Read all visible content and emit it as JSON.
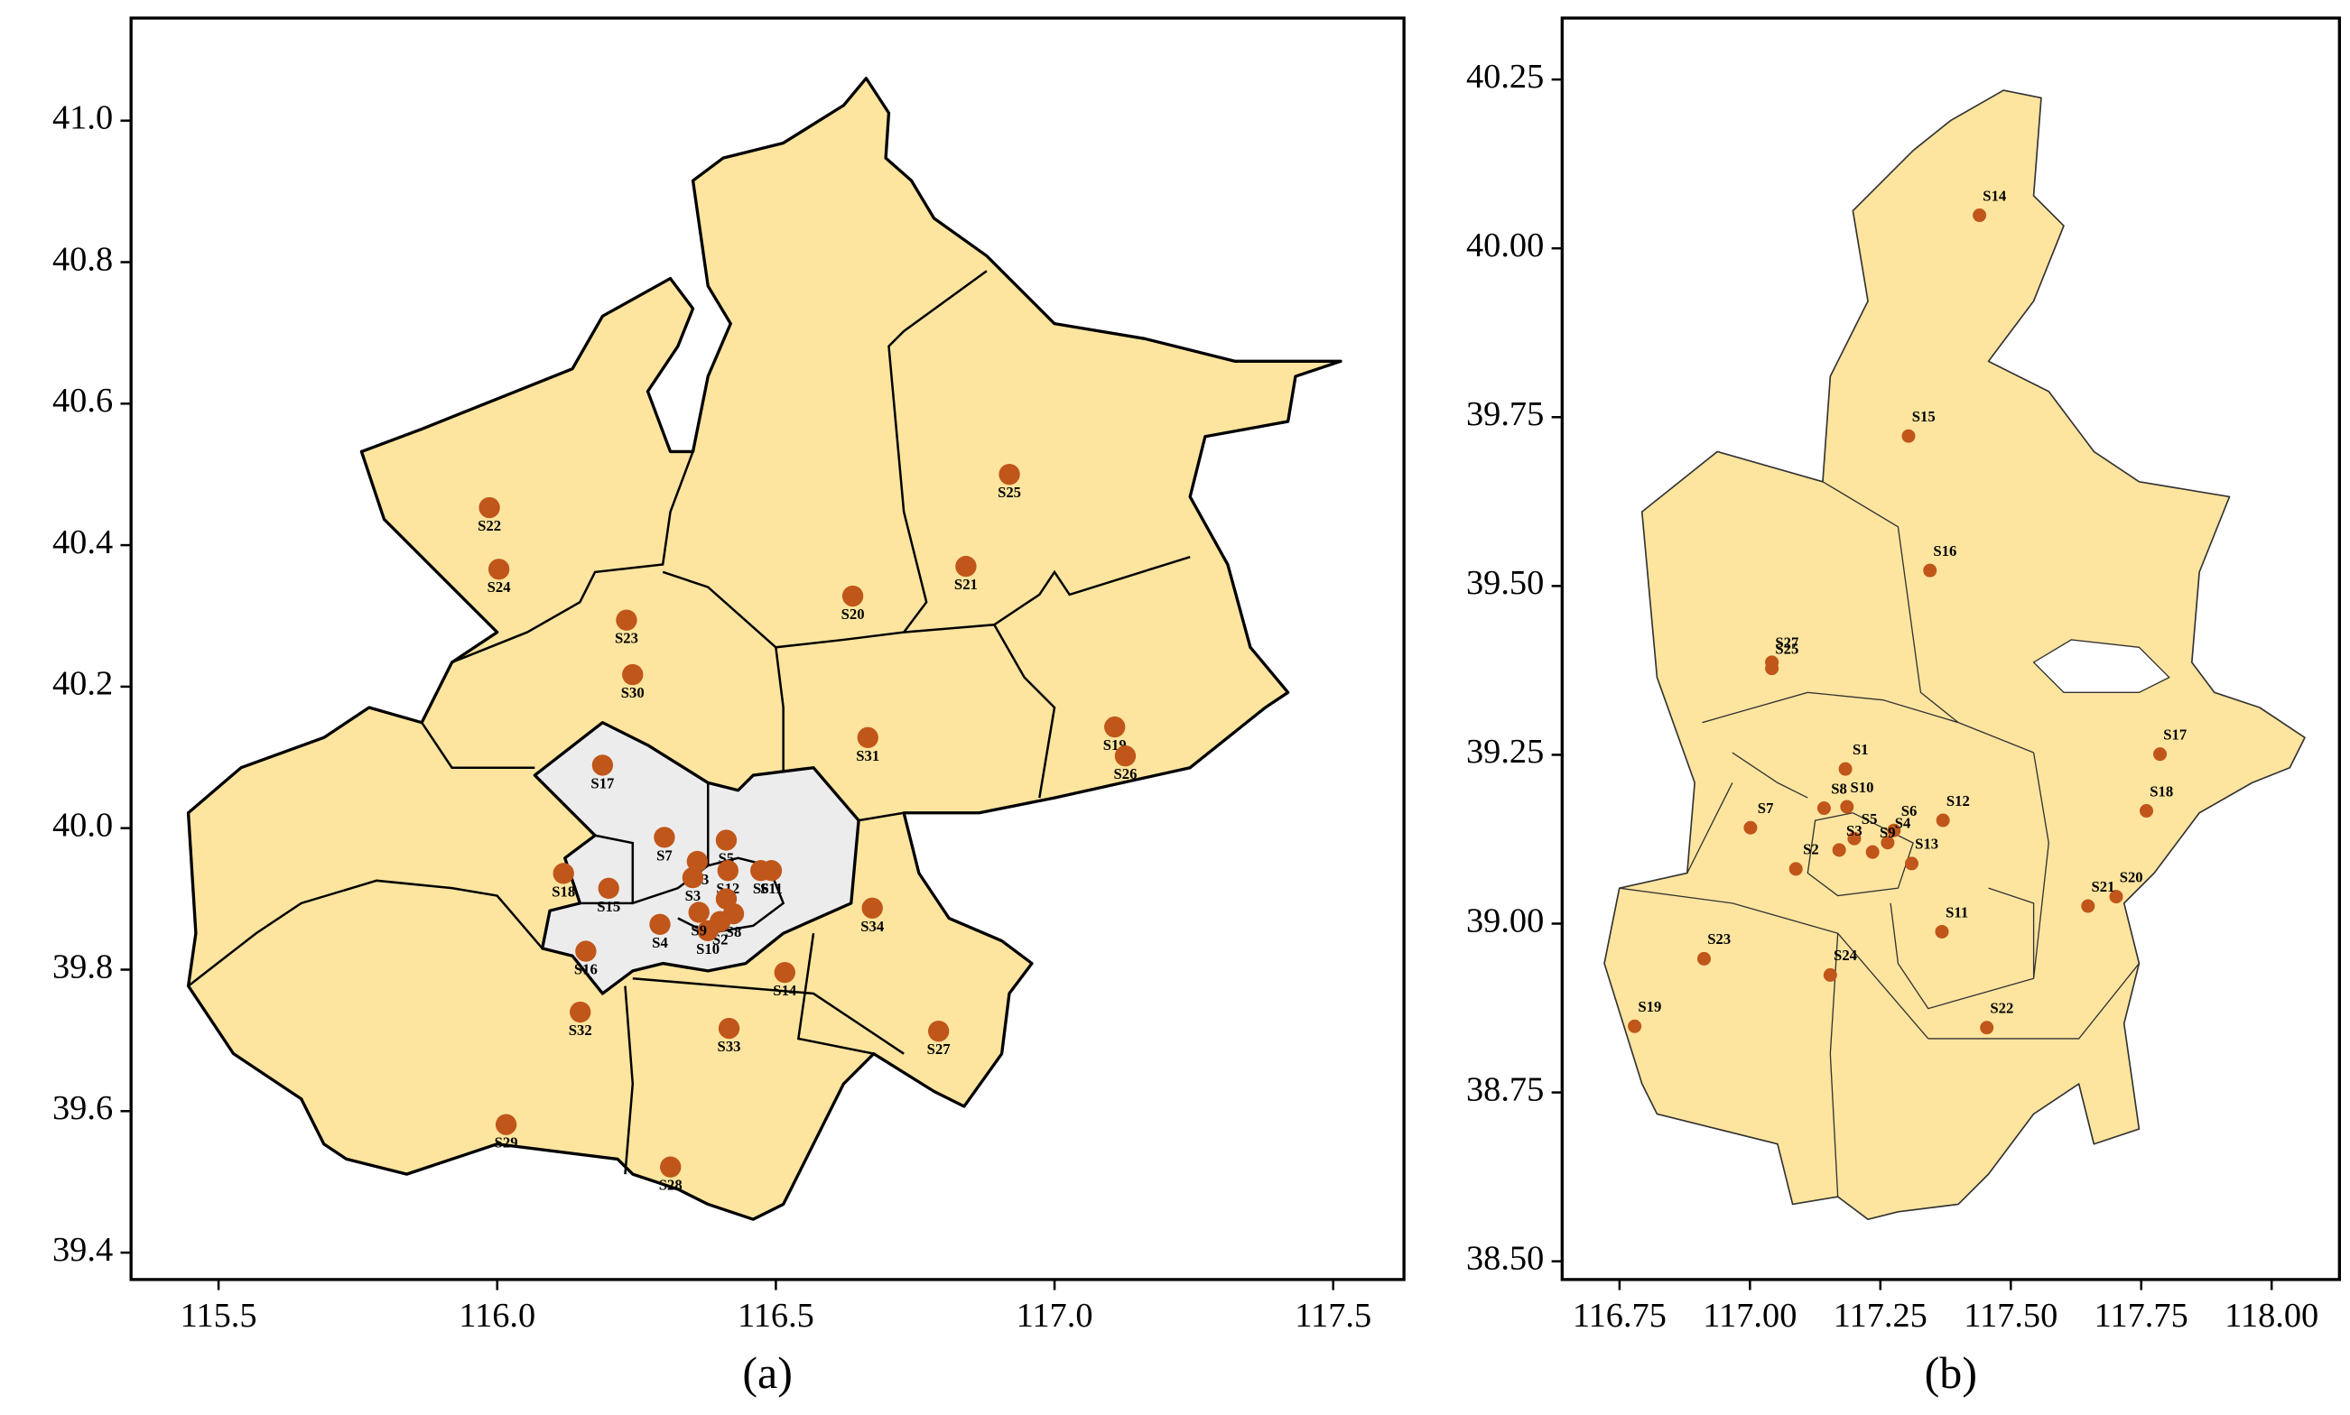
{
  "chart_data": [
    {
      "type": "scatter",
      "caption": "(a)",
      "color": "#c0561a",
      "xlim": [
        115.343,
        117.627
      ],
      "ylim": [
        39.362,
        41.145
      ],
      "xticks": [
        115.5,
        {
          "value": 116.0,
          "label": "116.0"
        },
        116.5,
        {
          "value": 117.0,
          "label": "117.0"
        },
        117.5
      ],
      "yticks": [
        {
          "value": 39.4,
          "label": "39.4"
        },
        39.6,
        39.8,
        {
          "value": 40.0,
          "label": "40.0"
        },
        40.2,
        40.4,
        40.6,
        40.8,
        {
          "value": 41.0,
          "label": "41.0"
        }
      ],
      "names": [
        "S22",
        "S24",
        "S23",
        "S30",
        "S20",
        "S21",
        "S25",
        "S19",
        "S26",
        "S31",
        "S17",
        "S7",
        "S13",
        "S5",
        "S12",
        "S6",
        "S11",
        "S3",
        "S1",
        "S8",
        "S2",
        "S10",
        "S4",
        "S9",
        "S18",
        "S15",
        "S16",
        "S34",
        "S14",
        "S32",
        "S33",
        "S27",
        "S29",
        "S28"
      ],
      "x": [
        115.986,
        116.003,
        116.232,
        116.243,
        116.638,
        116.841,
        116.919,
        117.108,
        117.127,
        116.665,
        116.189,
        116.3,
        116.359,
        116.411,
        116.414,
        116.473,
        116.492,
        116.351,
        116.411,
        116.424,
        116.4,
        116.378,
        116.292,
        116.362,
        116.119,
        116.2,
        116.159,
        116.673,
        116.516,
        116.149,
        116.416,
        116.792,
        116.016,
        116.311
      ],
      "y": [
        40.453,
        40.366,
        40.294,
        40.217,
        40.328,
        40.37,
        40.5,
        40.143,
        40.102,
        40.128,
        40.089,
        39.987,
        39.953,
        39.983,
        39.94,
        39.94,
        39.94,
        39.93,
        39.9,
        39.879,
        39.868,
        39.855,
        39.864,
        39.881,
        39.936,
        39.915,
        39.826,
        39.887,
        39.796,
        39.74,
        39.717,
        39.713,
        39.581,
        39.521
      ]
    },
    {
      "type": "scatter",
      "caption": "(b)",
      "color": "#c0561a",
      "xlim": [
        116.64,
        118.13
      ],
      "ylim": [
        38.473,
        40.341
      ],
      "xticks": [
        116.75,
        {
          "value": 117.0,
          "label": "117.00"
        },
        117.25,
        {
          "value": 117.5,
          "label": "117.50"
        },
        117.75,
        {
          "value": 118.0,
          "label": "118.00"
        }
      ],
      "yticks": [
        {
          "value": 38.5,
          "label": "38.50"
        },
        38.75,
        {
          "value": 39.0,
          "label": "39.00"
        },
        39.25,
        {
          "value": 39.5,
          "label": "39.50"
        },
        39.75,
        {
          "value": 40.0,
          "label": "40.00"
        },
        40.25
      ],
      "names": [
        "S14",
        "S15",
        "S16",
        "S27",
        "S25",
        "S1",
        "S8",
        "S10",
        "S7",
        "S5",
        "S12",
        "S6",
        "S4",
        "S3",
        "S9",
        "S2",
        "S13",
        "S11",
        "S17",
        "S18",
        "S20",
        "S21",
        "S23",
        "S24",
        "S22",
        "S19"
      ],
      "x": [
        117.44,
        117.304,
        117.345,
        117.042,
        117.042,
        117.183,
        117.142,
        117.186,
        117.001,
        117.2,
        117.37,
        117.276,
        117.264,
        117.171,
        117.235,
        117.088,
        117.31,
        117.368,
        117.786,
        117.76,
        117.702,
        117.648,
        116.912,
        117.154,
        117.454,
        116.779
      ],
      "y": [
        40.049,
        39.722,
        39.523,
        39.387,
        39.378,
        39.229,
        39.171,
        39.173,
        39.142,
        39.126,
        39.153,
        39.138,
        39.12,
        39.109,
        39.106,
        39.081,
        39.089,
        38.988,
        39.251,
        39.167,
        39.04,
        39.026,
        38.948,
        38.924,
        38.846,
        38.848
      ]
    }
  ]
}
